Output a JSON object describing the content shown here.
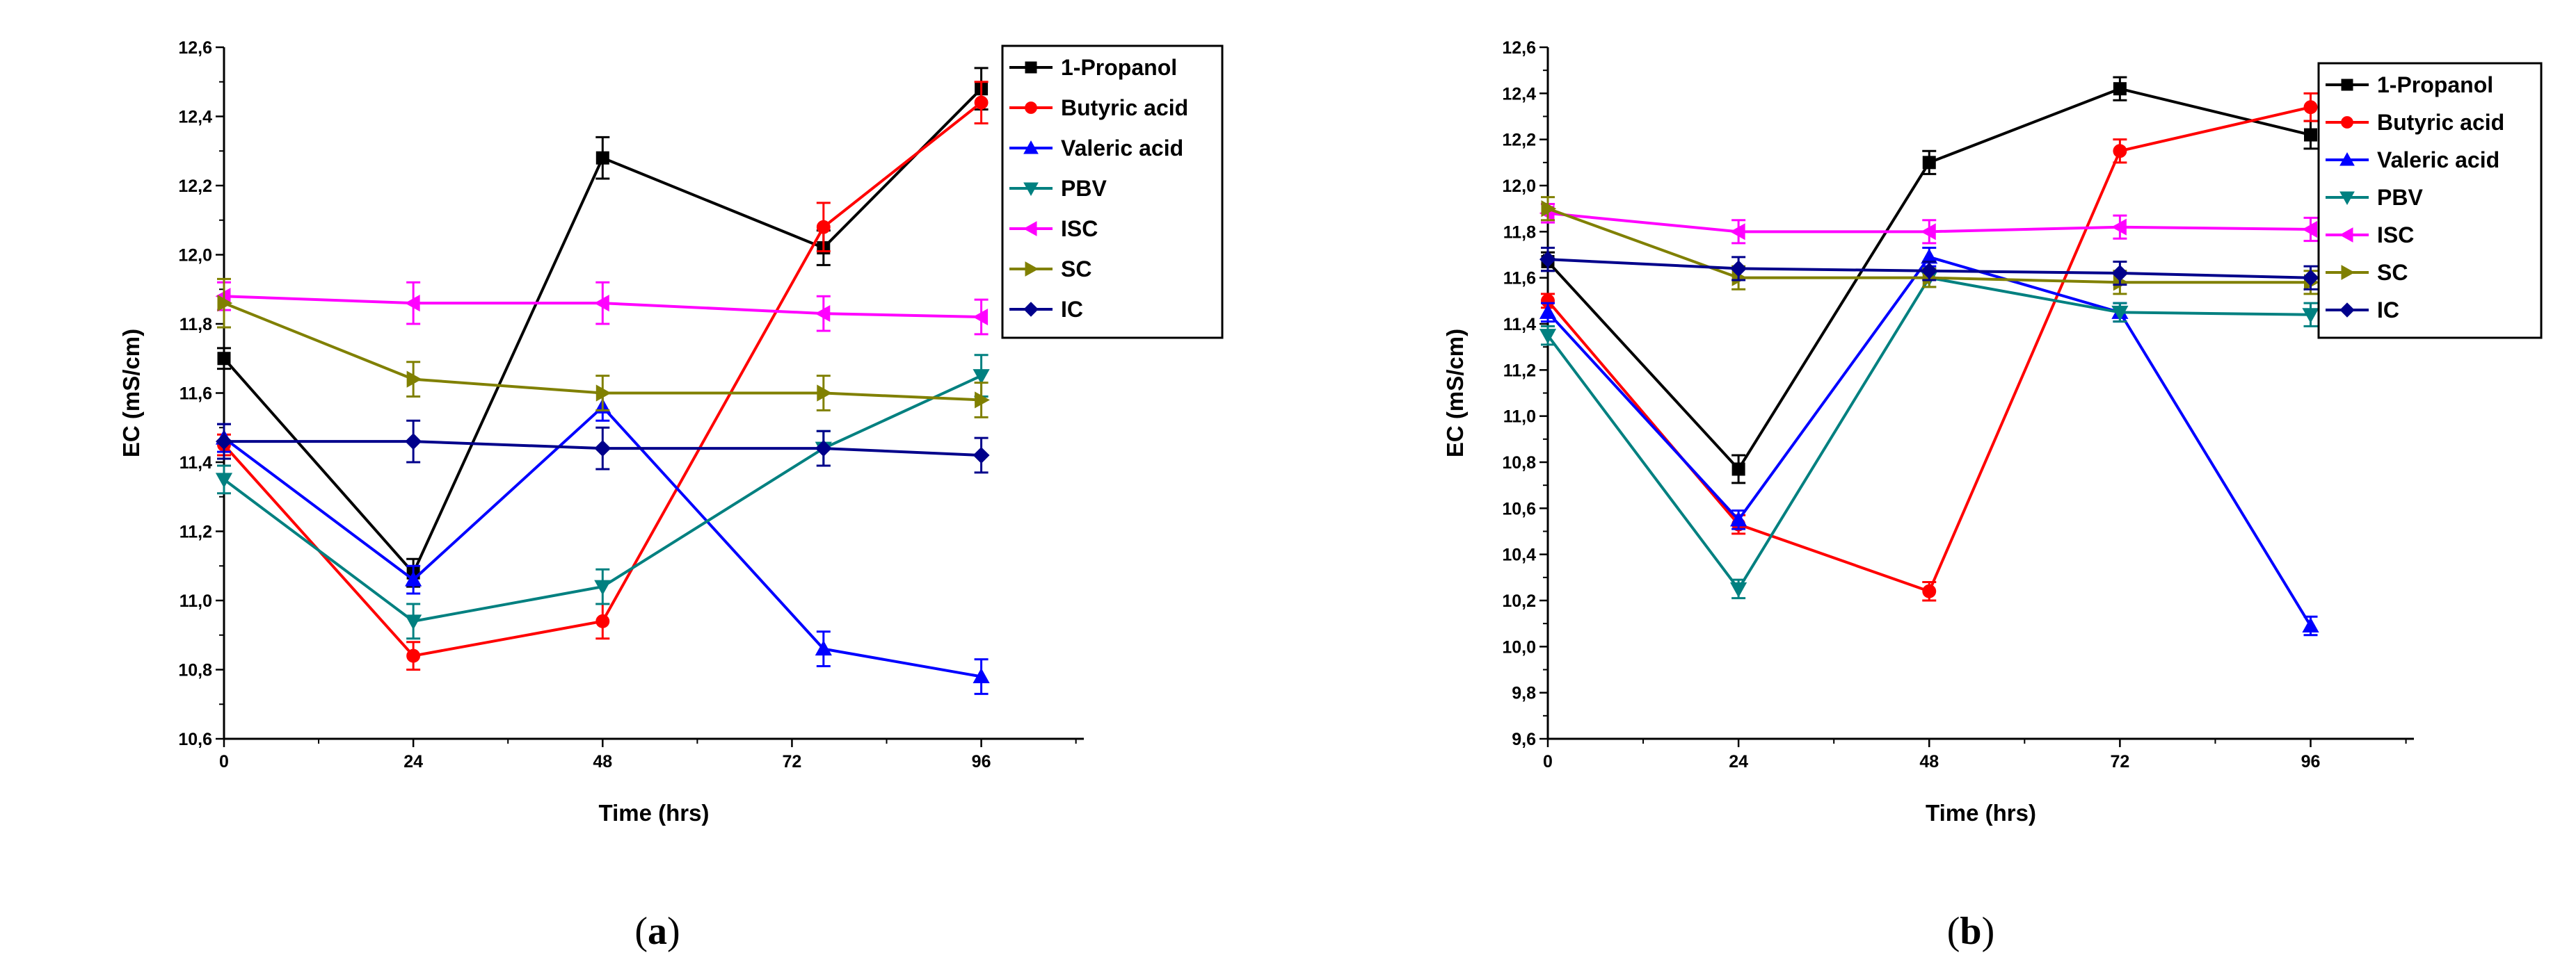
{
  "figure": {
    "panels": [
      {
        "label_open": "(",
        "label_letter": "a",
        "label_close": ")"
      },
      {
        "label_open": "(",
        "label_letter": "b",
        "label_close": ")"
      }
    ]
  },
  "chart_data": [
    {
      "type": "line",
      "panel": "a",
      "xlabel": "Time (hrs)",
      "ylabel": "EC (mS/cm)",
      "xlim": [
        0,
        109
      ],
      "ylim": [
        10.6,
        12.6
      ],
      "xticks": [
        0,
        24,
        48,
        72,
        96
      ],
      "xtick_labels": [
        "0",
        "24",
        "48",
        "72",
        "96"
      ],
      "yticks": [
        10.6,
        10.8,
        11.0,
        11.2,
        11.4,
        11.6,
        11.8,
        12.0,
        12.2,
        12.4,
        12.6
      ],
      "ytick_labels": [
        "10,6",
        "10,8",
        "11,0",
        "11,2",
        "11,4",
        "11,6",
        "11,8",
        "12,0",
        "12,2",
        "12,4",
        "12,6"
      ],
      "legend_position": "top-right",
      "series": [
        {
          "name": "1-Propanol",
          "color": "#000000",
          "marker": "square",
          "x": [
            0,
            24,
            48,
            76,
            96
          ],
          "values": [
            11.7,
            11.08,
            12.28,
            12.02,
            12.48
          ],
          "errors": [
            0.03,
            0.04,
            0.06,
            0.05,
            0.06
          ]
        },
        {
          "name": "Butyric acid",
          "color": "#ff0000",
          "marker": "circle",
          "x": [
            0,
            24,
            48,
            76,
            96
          ],
          "values": [
            11.45,
            10.84,
            10.94,
            12.08,
            12.44
          ],
          "errors": [
            0.03,
            0.04,
            0.05,
            0.07,
            0.06
          ]
        },
        {
          "name": "Valeric acid",
          "color": "#0000ff",
          "marker": "triangle-up",
          "x": [
            0,
            24,
            48,
            76,
            96
          ],
          "values": [
            11.47,
            11.06,
            11.56,
            10.86,
            10.78
          ],
          "errors": [
            0.04,
            0.04,
            0.04,
            0.05,
            0.05
          ]
        },
        {
          "name": "PBV",
          "color": "#008080",
          "marker": "triangle-down",
          "x": [
            0,
            24,
            48,
            76,
            96
          ],
          "values": [
            11.35,
            10.94,
            11.04,
            11.44,
            11.65
          ],
          "errors": [
            0.04,
            0.05,
            0.05,
            0.05,
            0.06
          ]
        },
        {
          "name": "ISC",
          "color": "#ff00ff",
          "marker": "triangle-left",
          "x": [
            0,
            24,
            48,
            76,
            96
          ],
          "values": [
            11.88,
            11.86,
            11.86,
            11.83,
            11.82
          ],
          "errors": [
            0.04,
            0.06,
            0.06,
            0.05,
            0.05
          ]
        },
        {
          "name": "SC",
          "color": "#808000",
          "marker": "triangle-right",
          "x": [
            0,
            24,
            48,
            76,
            96
          ],
          "values": [
            11.86,
            11.64,
            11.6,
            11.6,
            11.58
          ],
          "errors": [
            0.07,
            0.05,
            0.05,
            0.05,
            0.05
          ]
        },
        {
          "name": "IC",
          "color": "#00008b",
          "marker": "diamond",
          "x": [
            0,
            24,
            48,
            76,
            96
          ],
          "values": [
            11.46,
            11.46,
            11.44,
            11.44,
            11.42
          ],
          "errors": [
            0.05,
            0.06,
            0.06,
            0.05,
            0.05
          ]
        }
      ]
    },
    {
      "type": "line",
      "panel": "b",
      "xlabel": "Time (hrs)",
      "ylabel": "EC (mS/cm)",
      "xlim": [
        0,
        109
      ],
      "ylim": [
        9.6,
        12.6
      ],
      "xticks": [
        0,
        24,
        48,
        72,
        96
      ],
      "xtick_labels": [
        "0",
        "24",
        "48",
        "72",
        "96"
      ],
      "yticks": [
        9.6,
        9.8,
        10.0,
        10.2,
        10.4,
        10.6,
        10.8,
        11.0,
        11.2,
        11.4,
        11.6,
        11.8,
        12.0,
        12.2,
        12.4,
        12.6
      ],
      "ytick_labels": [
        "9,6",
        "9,8",
        "10,0",
        "10,2",
        "10,4",
        "10,6",
        "10,8",
        "11,0",
        "11,2",
        "11,4",
        "11,6",
        "11,8",
        "12,0",
        "12,2",
        "12,4",
        "12,6"
      ],
      "legend_position": "top-right",
      "series": [
        {
          "name": "1-Propanol",
          "color": "#000000",
          "marker": "square",
          "x": [
            0,
            24,
            48,
            72,
            96
          ],
          "values": [
            11.67,
            10.77,
            12.1,
            12.42,
            12.22
          ],
          "errors": [
            0.04,
            0.06,
            0.05,
            0.05,
            0.06
          ]
        },
        {
          "name": "Butyric acid",
          "color": "#ff0000",
          "marker": "circle",
          "x": [
            0,
            24,
            48,
            72,
            96
          ],
          "values": [
            11.5,
            10.53,
            10.24,
            12.15,
            12.34
          ],
          "errors": [
            0.03,
            0.04,
            0.04,
            0.05,
            0.06
          ]
        },
        {
          "name": "Valeric acid",
          "color": "#0000ff",
          "marker": "triangle-up",
          "x": [
            0,
            24,
            48,
            72,
            96
          ],
          "values": [
            11.45,
            10.55,
            11.69,
            11.45,
            10.09
          ],
          "errors": [
            0.04,
            0.04,
            0.04,
            0.04,
            0.04
          ]
        },
        {
          "name": "PBV",
          "color": "#008080",
          "marker": "triangle-down",
          "x": [
            0,
            24,
            48,
            72,
            96
          ],
          "values": [
            11.35,
            10.25,
            11.6,
            11.45,
            11.44
          ],
          "errors": [
            0.04,
            0.04,
            0.04,
            0.04,
            0.05
          ]
        },
        {
          "name": "ISC",
          "color": "#ff00ff",
          "marker": "triangle-left",
          "x": [
            0,
            24,
            48,
            72,
            96
          ],
          "values": [
            11.88,
            11.8,
            11.8,
            11.82,
            11.81
          ],
          "errors": [
            0.04,
            0.05,
            0.05,
            0.05,
            0.05
          ]
        },
        {
          "name": "SC",
          "color": "#808000",
          "marker": "triangle-right",
          "x": [
            0,
            24,
            48,
            72,
            96
          ],
          "values": [
            11.9,
            11.6,
            11.6,
            11.58,
            11.58
          ],
          "errors": [
            0.05,
            0.05,
            0.04,
            0.05,
            0.05
          ]
        },
        {
          "name": "IC",
          "color": "#00008b",
          "marker": "diamond",
          "x": [
            0,
            24,
            48,
            72,
            96
          ],
          "values": [
            11.68,
            11.64,
            11.63,
            11.62,
            11.6
          ],
          "errors": [
            0.05,
            0.05,
            0.04,
            0.05,
            0.05
          ]
        }
      ]
    }
  ]
}
